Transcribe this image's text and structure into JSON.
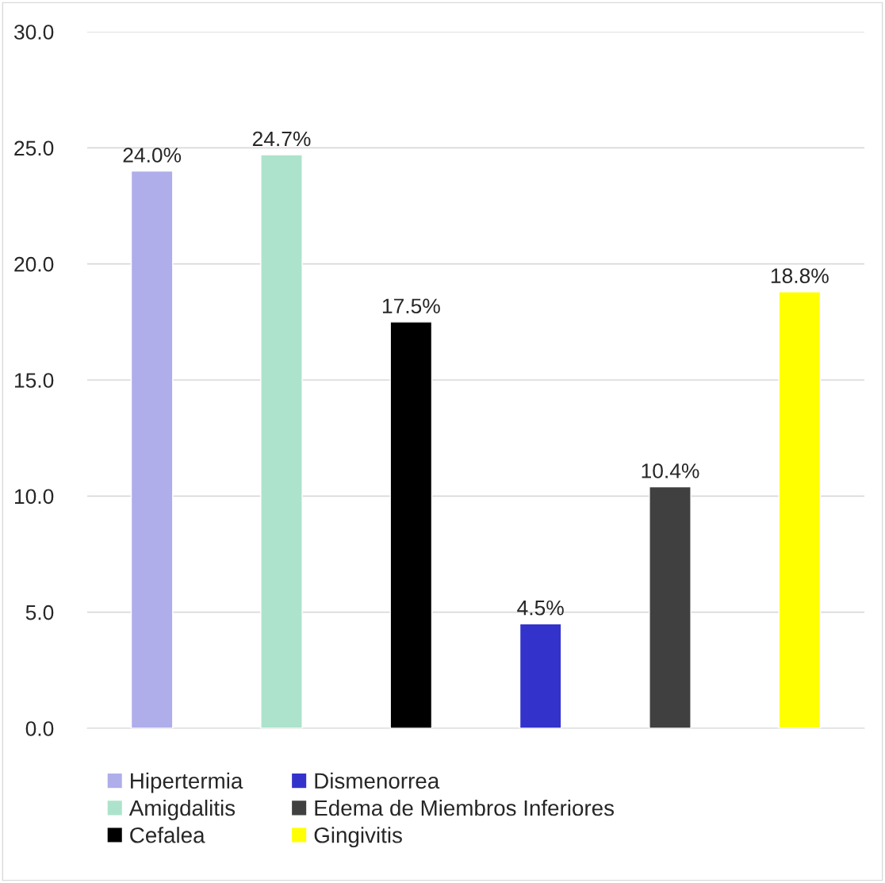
{
  "chart_data": {
    "type": "bar",
    "categories": [
      null,
      null,
      null,
      null,
      null,
      null
    ],
    "series": [
      {
        "name": "Hipertermia",
        "color": "#afaeeb",
        "values": [
          24.0,
          null,
          null,
          null,
          null,
          null
        ],
        "value_labels": [
          "24.0%",
          null,
          null,
          null,
          null,
          null
        ]
      },
      {
        "name": "Amigdalitis",
        "color": "#ade3cc",
        "values": [
          null,
          24.7,
          null,
          null,
          null,
          null
        ],
        "value_labels": [
          null,
          "24.7%",
          null,
          null,
          null,
          null
        ]
      },
      {
        "name": "Cefalea",
        "color": "#000000",
        "values": [
          null,
          null,
          17.5,
          null,
          null,
          null
        ],
        "value_labels": [
          null,
          null,
          "17.5%",
          null,
          null,
          null
        ]
      },
      {
        "name": "Dismenorrea",
        "color": "#3333cc",
        "values": [
          null,
          null,
          null,
          4.5,
          null,
          null
        ],
        "value_labels": [
          null,
          null,
          null,
          "4.5%",
          null,
          null
        ]
      },
      {
        "name": "Edema de Miembros Inferiores",
        "color": "#404040",
        "values": [
          null,
          null,
          null,
          null,
          10.4,
          null
        ],
        "value_labels": [
          null,
          null,
          null,
          null,
          "10.4%",
          null
        ]
      },
      {
        "name": "Gingivitis",
        "color": "#ffff00",
        "values": [
          null,
          null,
          null,
          null,
          null,
          18.8
        ],
        "value_labels": [
          null,
          null,
          null,
          null,
          null,
          "18.8%"
        ]
      }
    ],
    "ylim": [
      0,
      30
    ],
    "yticks": [
      {
        "value": 0,
        "label": "0.0"
      },
      {
        "value": 5,
        "label": "5.0"
      },
      {
        "value": 10,
        "label": "10.0"
      },
      {
        "value": 15,
        "label": "15.0"
      },
      {
        "value": 20,
        "label": "20.0"
      },
      {
        "value": 25,
        "label": "25.0"
      },
      {
        "value": 30,
        "label": "30.0"
      }
    ],
    "grid": "y",
    "legend": "bottom",
    "tick_labels": "y"
  }
}
